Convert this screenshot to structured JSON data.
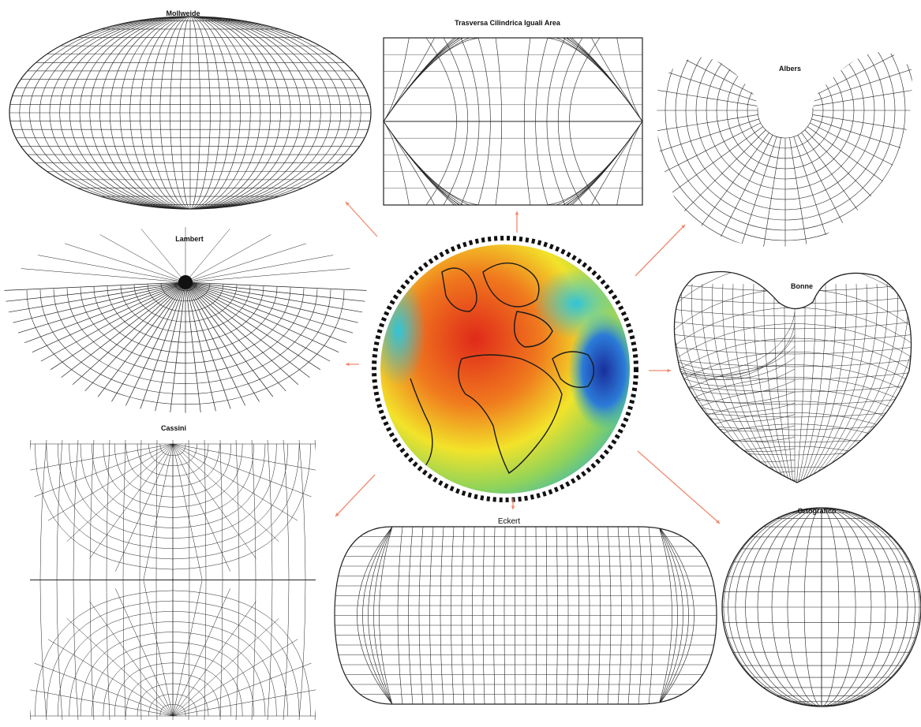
{
  "projections": {
    "mollweide": "Mollweide",
    "transverse_cylindrical": "Trasversa Cilindrica Iguali Area",
    "albers": "Albers",
    "lambert": "Lambert",
    "bonne": "Bonne",
    "cassini": "Cassini",
    "eckert": "Eckert",
    "orthographic": "Ortografico"
  },
  "colors": {
    "grid_line": "#222222",
    "arrow": "#f08a70",
    "geoid_low": "#1a2f9c",
    "geoid_mid": "#f2e32a",
    "geoid_high": "#e02a1a",
    "coastline": "#1a1a1a"
  }
}
